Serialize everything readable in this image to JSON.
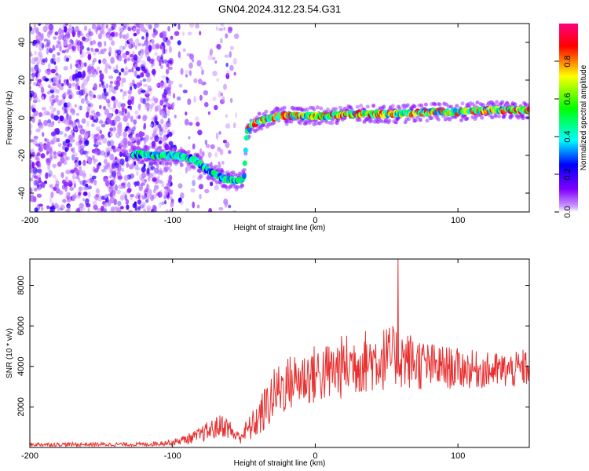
{
  "title": "GN04.2024.312.23.54.G31",
  "chart_data": [
    {
      "type": "heatmap",
      "panel": "spectrogram",
      "xlabel": "Height of straight line (km)",
      "ylabel": "Frequency (Hz)",
      "xlim": [
        -200,
        150
      ],
      "ylim": [
        -50,
        50
      ],
      "x_ticks": [
        -200,
        -100,
        0,
        100
      ],
      "y_ticks": [
        -40,
        -20,
        0,
        20,
        40
      ],
      "grid": false,
      "colorbar": {
        "label": "Normalized spectral amplitude",
        "range": [
          0,
          1
        ],
        "ticks": [
          0.0,
          0.2,
          0.4,
          0.6,
          0.8
        ],
        "colormap": [
          "#cc99ff",
          "#8000ff",
          "#0000ff",
          "#00ffff",
          "#00ff00",
          "#ffff00",
          "#ff0000",
          "#ff00aa"
        ]
      },
      "noise_region": {
        "x": [
          -200,
          -55
        ],
        "freq": [
          -50,
          50
        ]
      },
      "trace": {
        "x": [
          -128,
          -110,
          -100,
          -92,
          -85,
          -80,
          -75,
          -70,
          -65,
          -60,
          -55,
          -50,
          -48,
          -45,
          -40,
          -35,
          -30,
          -25,
          -20,
          -10,
          0,
          10,
          20,
          40,
          60,
          80,
          100,
          120,
          150
        ],
        "freq": [
          -19,
          -20,
          -20,
          -21,
          -22,
          -25,
          -28,
          -30,
          -32,
          -33,
          -34,
          -32,
          -8,
          -4,
          -2,
          -1,
          0,
          1,
          1,
          1,
          1,
          1,
          2,
          2,
          2,
          3,
          3,
          4,
          4
        ]
      }
    },
    {
      "type": "line",
      "panel": "snr",
      "xlabel": "Height of straight line (km)",
      "ylabel": "SNR (10 * v/v)",
      "xlim": [
        -200,
        150
      ],
      "ylim": [
        0,
        9300
      ],
      "x_ticks": [
        -200,
        -100,
        0,
        100
      ],
      "y_ticks": [
        2000,
        4000,
        6000,
        8000
      ],
      "grid": false,
      "color": "#e83030",
      "envelope": {
        "x": [
          -200,
          -120,
          -100,
          -85,
          -75,
          -65,
          -60,
          -55,
          -50,
          -45,
          -40,
          -35,
          -30,
          -25,
          -20,
          -15,
          -10,
          0,
          10,
          20,
          30,
          40,
          50,
          57,
          60,
          70,
          80,
          100,
          120,
          140,
          150
        ],
        "mean": [
          150,
          150,
          250,
          500,
          800,
          1100,
          900,
          500,
          700,
          1000,
          1400,
          1900,
          2500,
          2900,
          3100,
          3300,
          3400,
          3600,
          3700,
          4000,
          4200,
          4300,
          4400,
          4500,
          4400,
          4200,
          4000,
          3900,
          3800,
          3800,
          4000
        ],
        "spread": [
          100,
          100,
          150,
          300,
          500,
          600,
          500,
          350,
          500,
          700,
          900,
          1200,
          1300,
          1400,
          1400,
          1400,
          1400,
          1500,
          1500,
          1600,
          1600,
          1600,
          1600,
          1500,
          1500,
          1400,
          1200,
          1000,
          900,
          900,
          1000
        ]
      },
      "peak": {
        "x": 58,
        "y": 9300
      }
    }
  ]
}
